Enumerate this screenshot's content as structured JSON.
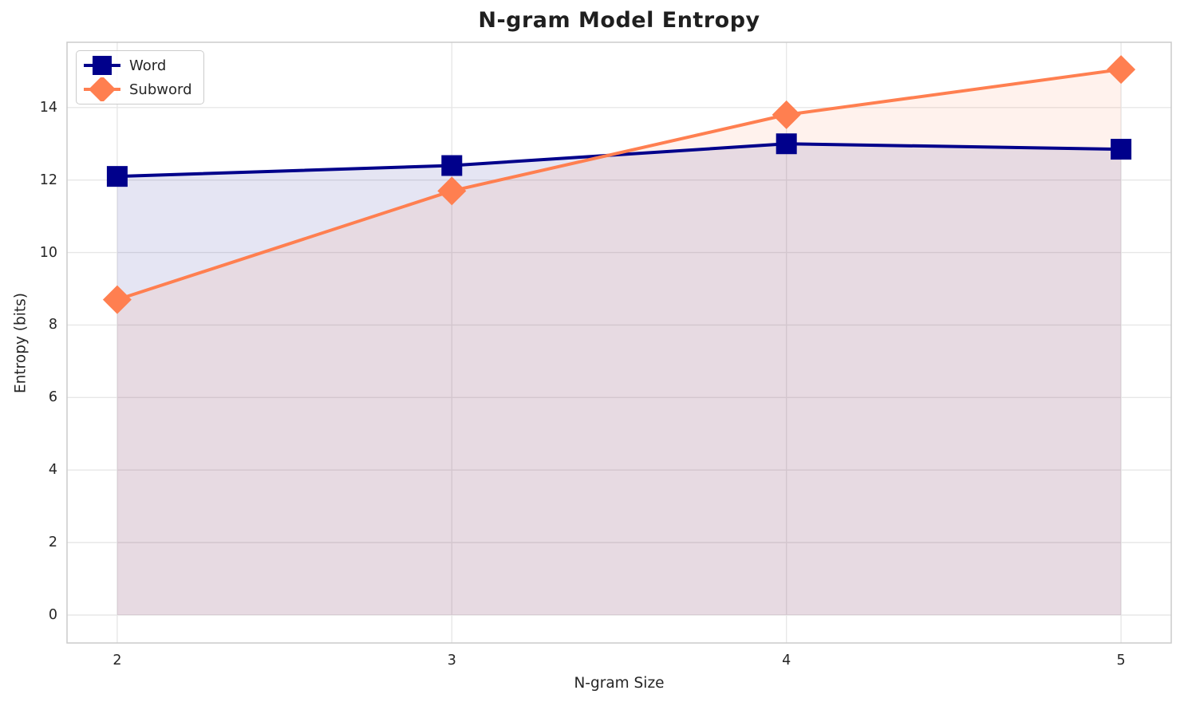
{
  "chart_data": {
    "type": "line",
    "title": "N-gram Model Entropy",
    "xlabel": "N-gram Size",
    "ylabel": "Entropy (bits)",
    "x": [
      2,
      3,
      4,
      5
    ],
    "series": [
      {
        "name": "Word",
        "values": [
          12.1,
          12.4,
          13.0,
          12.85
        ],
        "color": "#00008B",
        "marker": "square",
        "fill_alpha": 0.1
      },
      {
        "name": "Subword",
        "values": [
          8.7,
          11.7,
          13.8,
          15.05
        ],
        "color": "#FF7F50",
        "marker": "diamond",
        "fill_alpha": 0.1
      }
    ],
    "xticks": [
      2,
      3,
      4,
      5
    ],
    "yticks": [
      0,
      2,
      4,
      6,
      8,
      10,
      12,
      14
    ],
    "xlim": [
      1.85,
      5.15
    ],
    "ylim": [
      -0.77,
      15.8
    ],
    "fill_baseline": 0,
    "grid": true,
    "legend_position": "upper left",
    "colors": {
      "background": "#FFFFFF",
      "grid": "#E7E7E7",
      "spine": "#CBCBCB",
      "text": "#262626",
      "title": "#1F1F1F"
    }
  }
}
